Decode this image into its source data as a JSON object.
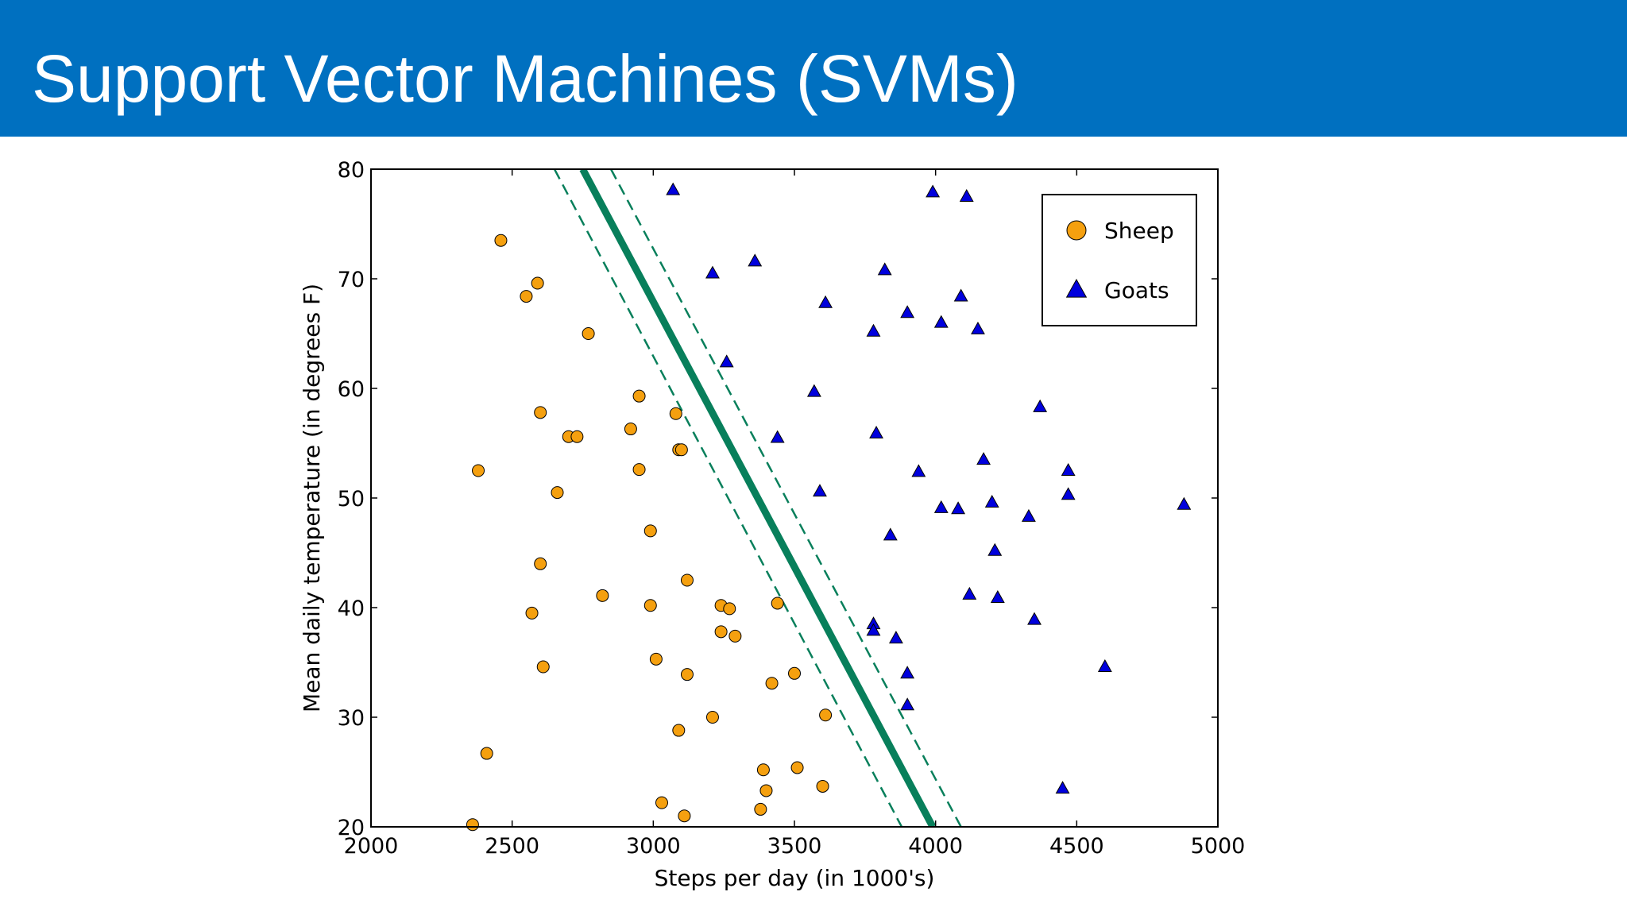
{
  "slide": {
    "title": "Support Vector Machines (SVMs)"
  },
  "colors": {
    "header_bg": "#0070c0",
    "sheep": "#f5a00f",
    "goats": "#0000dd",
    "boundary": "#087f5b"
  },
  "chart_data": {
    "type": "scatter",
    "xlabel": "Steps per day (in 1000's)",
    "ylabel": "Mean daily temperature (in degrees F)",
    "xlim": [
      2000,
      5000
    ],
    "ylim": [
      20,
      80
    ],
    "xticks": [
      2000,
      2500,
      3000,
      3500,
      4000,
      4500,
      5000
    ],
    "yticks": [
      20,
      30,
      40,
      50,
      60,
      70,
      80
    ],
    "grid": false,
    "legend_position": "top-right",
    "series": [
      {
        "name": "Sheep",
        "marker": "circle",
        "color": "#f5a00f",
        "points": [
          [
            2460,
            73.5
          ],
          [
            2590,
            69.6
          ],
          [
            2550,
            68.4
          ],
          [
            2770,
            65.0
          ],
          [
            2950,
            59.3
          ],
          [
            2600,
            57.8
          ],
          [
            3080,
            57.7
          ],
          [
            2920,
            56.3
          ],
          [
            2700,
            55.6
          ],
          [
            2730,
            55.6
          ],
          [
            3090,
            54.4
          ],
          [
            3100,
            54.4
          ],
          [
            2380,
            52.5
          ],
          [
            2950,
            52.6
          ],
          [
            2660,
            50.5
          ],
          [
            2990,
            47.0
          ],
          [
            2600,
            44.0
          ],
          [
            3120,
            42.5
          ],
          [
            2820,
            41.1
          ],
          [
            2990,
            40.2
          ],
          [
            3240,
            40.2
          ],
          [
            3270,
            39.9
          ],
          [
            3440,
            40.4
          ],
          [
            2570,
            39.5
          ],
          [
            3240,
            37.8
          ],
          [
            3290,
            37.4
          ],
          [
            3010,
            35.3
          ],
          [
            2610,
            34.6
          ],
          [
            3120,
            33.9
          ],
          [
            3500,
            34.0
          ],
          [
            3420,
            33.1
          ],
          [
            3210,
            30.0
          ],
          [
            3610,
            30.2
          ],
          [
            3090,
            28.8
          ],
          [
            2410,
            26.7
          ],
          [
            3390,
            25.2
          ],
          [
            3510,
            25.4
          ],
          [
            3600,
            23.7
          ],
          [
            3400,
            23.3
          ],
          [
            3030,
            22.2
          ],
          [
            3380,
            21.6
          ],
          [
            3110,
            21.0
          ],
          [
            2360,
            20.2
          ]
        ]
      },
      {
        "name": "Goats",
        "marker": "triangle",
        "color": "#0000dd",
        "points": [
          [
            3070,
            78.1
          ],
          [
            3990,
            77.9
          ],
          [
            4110,
            77.5
          ],
          [
            3360,
            71.6
          ],
          [
            3210,
            70.5
          ],
          [
            3820,
            70.8
          ],
          [
            4090,
            68.4
          ],
          [
            3610,
            67.8
          ],
          [
            3900,
            66.9
          ],
          [
            4020,
            66.0
          ],
          [
            3780,
            65.2
          ],
          [
            4150,
            65.4
          ],
          [
            3260,
            62.4
          ],
          [
            3570,
            59.7
          ],
          [
            4370,
            58.3
          ],
          [
            3790,
            55.9
          ],
          [
            3440,
            55.5
          ],
          [
            4170,
            53.5
          ],
          [
            3940,
            52.4
          ],
          [
            4470,
            52.5
          ],
          [
            3590,
            50.6
          ],
          [
            4470,
            50.3
          ],
          [
            4200,
            49.6
          ],
          [
            4020,
            49.1
          ],
          [
            4080,
            49.0
          ],
          [
            4880,
            49.4
          ],
          [
            4330,
            48.3
          ],
          [
            3840,
            46.6
          ],
          [
            4210,
            45.2
          ],
          [
            4120,
            41.2
          ],
          [
            4220,
            40.9
          ],
          [
            4350,
            38.9
          ],
          [
            3780,
            38.5
          ],
          [
            3780,
            37.9
          ],
          [
            3860,
            37.2
          ],
          [
            4600,
            34.6
          ],
          [
            3900,
            34.0
          ],
          [
            3900,
            31.1
          ],
          [
            4450,
            23.5
          ]
        ]
      }
    ],
    "decision_boundary": [
      [
        2750,
        80
      ],
      [
        3990,
        20
      ]
    ],
    "margin_lines": [
      [
        [
          2650,
          80
        ],
        [
          3880,
          20
        ]
      ],
      [
        [
          2850,
          80
        ],
        [
          4090,
          20
        ]
      ]
    ]
  }
}
